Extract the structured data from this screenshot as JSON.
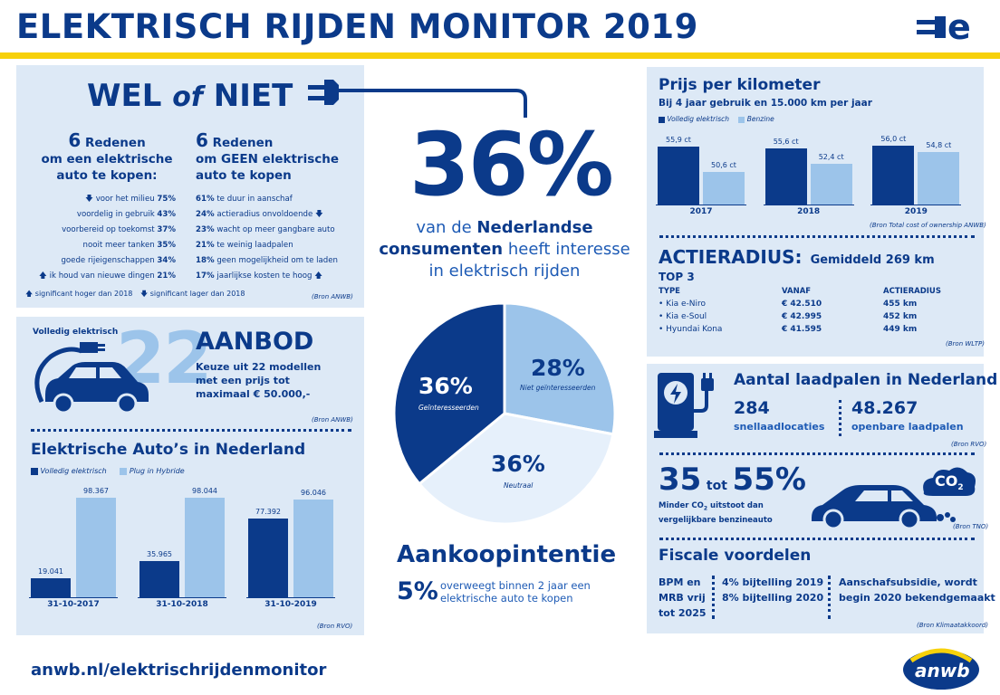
{
  "header": {
    "title": "ELEKTRISCH RIJDEN MONITOR 2019",
    "logo_icon": "e-plug-icon"
  },
  "colors": {
    "navy": "#0b3a8a",
    "light_blue": "#9cc4ea",
    "panel": "#dde9f6",
    "yellow": "#f7d10a"
  },
  "welofniet": {
    "title_wel": "WEL",
    "title_of": "of",
    "title_niet": "NIET",
    "pro_heading_num": "6",
    "pro_heading": "Redenen",
    "pro_heading_2": "om een elektrische",
    "pro_heading_3": "auto te kopen:",
    "con_heading_num": "6",
    "con_heading": "Redenen",
    "con_heading_2": "om GEEN elektrische",
    "con_heading_3": "auto te kopen",
    "pro_items": [
      {
        "text": "voor het milieu",
        "pct": "75%",
        "arrow": "down"
      },
      {
        "text": "voordelig in gebruik",
        "pct": "43%",
        "arrow": ""
      },
      {
        "text": "voorbereid op toekomst",
        "pct": "37%",
        "arrow": ""
      },
      {
        "text": "nooit meer tanken",
        "pct": "35%",
        "arrow": ""
      },
      {
        "text": "goede rijeigenschappen",
        "pct": "34%",
        "arrow": ""
      },
      {
        "text": "ik houd van nieuwe dingen",
        "pct": "21%",
        "arrow": "up"
      }
    ],
    "con_items": [
      {
        "pct": "61%",
        "text": "te duur in aanschaf",
        "arrow": ""
      },
      {
        "pct": "24%",
        "text": "actieradius onvoldoende",
        "arrow": "down"
      },
      {
        "pct": "23%",
        "text": "wacht op meer gangbare auto",
        "arrow": ""
      },
      {
        "pct": "21%",
        "text": "te weinig laadpalen",
        "arrow": ""
      },
      {
        "pct": "18%",
        "text": "geen mogelijkheid om te laden",
        "arrow": ""
      },
      {
        "pct": "17%",
        "text": "jaarlijkse kosten te hoog",
        "arrow": "up"
      }
    ],
    "legend_up": "significant hoger dan 2018",
    "legend_down": "significant lager dan 2018",
    "source": "(Bron ANWB)"
  },
  "aanbod": {
    "label": "Volledig elektrisch",
    "number": "22",
    "title": "AANBOD",
    "line1": "Keuze uit 22 modellen",
    "line2": "met een prijs tot",
    "line3": "maximaal € 50.000,-",
    "source": "(Bron ANWB)"
  },
  "autos_nl": {
    "title": "Elektrische Auto’s in Nederland",
    "legend_full": "Volledig elektrisch",
    "legend_plugin": "Plug in Hybride",
    "source": "(Bron RVO)"
  },
  "center": {
    "big_pct": "36%",
    "line1_pre": "van de ",
    "line1_bold": "Nederlandse",
    "line2_bold": "consumenten",
    "line2_post": " heeft interesse",
    "line3": "in elektrisch rijden",
    "aankoop_title": "Aankoopintentie",
    "aankoop_pct": "5%",
    "aankoop_line1": "overweegt binnen 2 jaar een",
    "aankoop_line2": "elektrische auto te kopen"
  },
  "prijs": {
    "title": "Prijs per kilometer",
    "subtitle": "Bij 4 jaar gebruik en 15.000 km per jaar",
    "legend_full": "Volledig elektrisch",
    "legend_benzine": "Benzine",
    "source": "(Bron Total cost of ownership ANWB)"
  },
  "actieradius": {
    "title": "ACTIERADIUS:",
    "subtitle": "Gemiddeld 269 km",
    "top": "TOP 3",
    "headers": [
      "TYPE",
      "VANAF",
      "ACTIERADIUS"
    ],
    "rows": [
      [
        "• Kia e-Niro",
        "€ 42.510",
        "455  km"
      ],
      [
        "• Kia e-Soul",
        "€ 42.995",
        "452  km"
      ],
      [
        "• Hyundai Kona",
        "€ 41.595",
        "449  km"
      ]
    ],
    "source": "(Bron WLTP)"
  },
  "laadpalen": {
    "title": "Aantal laadpalen in Nederland",
    "num1": "284",
    "label1": "snellaadlocaties",
    "num2": "48.267",
    "label2": "openbare laadpalen",
    "source": "(Bron RVO)"
  },
  "co2": {
    "big1": "35",
    "tot": "tot",
    "big2": "55%",
    "line1": "Minder CO",
    "line1_sub": "2",
    "line1_post": " uitstoot dan",
    "line2": "vergelijkbare benzineauto",
    "cloud_text": "CO",
    "cloud_sub": "2",
    "source": "(Bron TNO)"
  },
  "fiscaal": {
    "title": "Fiscale voordelen",
    "col1": [
      "BPM en",
      "MRB vrij",
      "tot 2025"
    ],
    "col2": [
      "4% bijtelling 2019",
      "8% bijtelling 2020"
    ],
    "col3": [
      "Aanschafsubsidie, wordt",
      "begin 2020 bekendgemaakt"
    ],
    "source": "(Bron Klimaatakkoord)"
  },
  "footer": {
    "url": "anwb.nl/elektrischrijdenmonitor",
    "logo_text": "anwb"
  },
  "chart_data": [
    {
      "type": "pie",
      "categories": [
        "Geïnteresseerden",
        "Niet geïnteresseerden",
        "Neutraal"
      ],
      "values": [
        36,
        28,
        36
      ],
      "labels": [
        "36%",
        "28%",
        "36%"
      ]
    },
    {
      "type": "bar",
      "title": "Elektrische Auto’s in Nederland",
      "categories": [
        "31-10-2017",
        "31-10-2018",
        "31-10-2019"
      ],
      "series": [
        {
          "name": "Volledig elektrisch",
          "values": [
            19041,
            35965,
            77392
          ],
          "labels": [
            "19.041",
            "35.965",
            "77.392"
          ]
        },
        {
          "name": "Plug in Hybride",
          "values": [
            98367,
            98044,
            96046
          ],
          "labels": [
            "98.367",
            "98.044",
            "96.046"
          ]
        }
      ]
    },
    {
      "type": "bar",
      "title": "Prijs per kilometer",
      "categories": [
        "2017",
        "2018",
        "2019"
      ],
      "series": [
        {
          "name": "Volledig elektrisch",
          "values": [
            55.9,
            55.6,
            56.0
          ],
          "labels": [
            "55,9 ct",
            "55,6 ct",
            "56,0 ct"
          ]
        },
        {
          "name": "Benzine",
          "values": [
            50.6,
            52.4,
            54.8
          ],
          "labels": [
            "50,6 ct",
            "52,4 ct",
            "54,8 ct"
          ]
        }
      ]
    }
  ]
}
